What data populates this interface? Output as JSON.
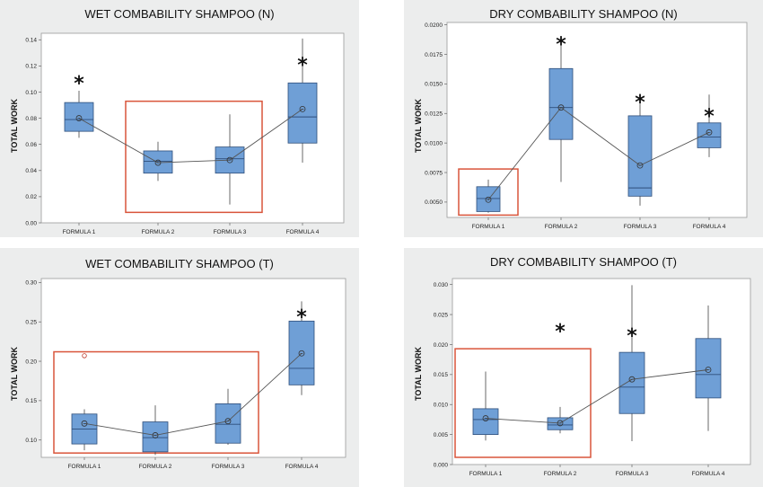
{
  "chart_data": [
    {
      "type": "box",
      "title": "WET COMBABILITY SHAMPOO (N)",
      "ylabel": "TOTAL WORK",
      "categories": [
        "FORMULA 1",
        "FORMULA 2",
        "FORMULA 3",
        "FORMULA 4"
      ],
      "yticks": [
        "0.00",
        "0.02",
        "0.04",
        "0.06",
        "0.08",
        "0.10",
        "0.12",
        "0.14"
      ],
      "ylim": [
        0,
        0.145
      ],
      "boxes": [
        {
          "min": 0.065,
          "q1": 0.07,
          "median": 0.079,
          "q3": 0.092,
          "max": 0.101,
          "mean": 0.08
        },
        {
          "min": 0.032,
          "q1": 0.038,
          "median": 0.047,
          "q3": 0.055,
          "max": 0.062,
          "mean": 0.046
        },
        {
          "min": 0.014,
          "q1": 0.038,
          "median": 0.049,
          "q3": 0.058,
          "max": 0.083,
          "mean": 0.048
        },
        {
          "min": 0.046,
          "q1": 0.061,
          "median": 0.081,
          "q3": 0.107,
          "max": 0.141,
          "mean": 0.087
        }
      ],
      "outliers": [],
      "stars": [
        {
          "category": "FORMULA 1",
          "y": 0.108,
          "label": "*"
        },
        {
          "category": "FORMULA 4",
          "y": 0.122,
          "label": "*"
        }
      ],
      "highlight": {
        "from": "FORMULA 2",
        "to": "FORMULA 3",
        "ymin": 0.008,
        "ymax": 0.093,
        "color": "#d9553b"
      }
    },
    {
      "type": "box",
      "title": "DRY COMBABILITY SHAMPOO (N)",
      "ylabel": "TOTAL WORK",
      "categories": [
        "FORMULA 1",
        "FORMULA 2",
        "FORMULA 3",
        "FORMULA 4"
      ],
      "yticks": [
        "0.0050",
        "0.0075",
        "0.0100",
        "0.0125",
        "0.0150",
        "0.0175",
        "0.0200"
      ],
      "ylim": [
        0.0037,
        0.0202
      ],
      "boxes": [
        {
          "min": 0.0041,
          "q1": 0.0042,
          "median": 0.0053,
          "q3": 0.0063,
          "max": 0.0069,
          "mean": 0.0052
        },
        {
          "min": 0.0067,
          "q1": 0.0103,
          "median": 0.013,
          "q3": 0.0163,
          "max": 0.0185,
          "mean": 0.013
        },
        {
          "min": 0.0047,
          "q1": 0.0055,
          "median": 0.0062,
          "q3": 0.0123,
          "max": 0.0137,
          "mean": 0.0081
        },
        {
          "min": 0.0088,
          "q1": 0.0096,
          "median": 0.0105,
          "q3": 0.0117,
          "max": 0.0141,
          "mean": 0.0109
        }
      ],
      "outliers": [],
      "stars": [
        {
          "category": "FORMULA 2",
          "y": 0.0185,
          "label": "*"
        },
        {
          "category": "FORMULA 3",
          "y": 0.0136,
          "label": "*"
        },
        {
          "category": "FORMULA 4",
          "y": 0.0124,
          "label": "*"
        }
      ],
      "highlight": {
        "from": "FORMULA 1",
        "to": "FORMULA 1",
        "ymin": 0.0039,
        "ymax": 0.0078,
        "color": "#d9553b"
      }
    },
    {
      "type": "box",
      "title": "WET COMBABILITY SHAMPOO (T)",
      "ylabel": "TOTAL WORK",
      "categories": [
        "FORMULA 1",
        "FORMULA 2",
        "FORMULA 3",
        "FORMULA 4"
      ],
      "yticks": [
        "0.10",
        "0.15",
        "0.20",
        "0.25",
        "0.30"
      ],
      "ylim": [
        0.078,
        0.305
      ],
      "boxes": [
        {
          "min": 0.087,
          "q1": 0.095,
          "median": 0.114,
          "q3": 0.133,
          "max": 0.139,
          "mean": 0.121
        },
        {
          "min": 0.081,
          "q1": 0.085,
          "median": 0.103,
          "q3": 0.123,
          "max": 0.144,
          "mean": 0.106
        },
        {
          "min": 0.094,
          "q1": 0.096,
          "median": 0.12,
          "q3": 0.146,
          "max": 0.165,
          "mean": 0.124
        },
        {
          "min": 0.157,
          "q1": 0.17,
          "median": 0.191,
          "q3": 0.251,
          "max": 0.276,
          "mean": 0.21
        }
      ],
      "outliers": [
        {
          "category": "FORMULA 1",
          "y": 0.207
        }
      ],
      "stars": [
        {
          "category": "FORMULA 4",
          "y": 0.258,
          "label": "*"
        }
      ],
      "highlight": {
        "from": "FORMULA 1",
        "to": "FORMULA 3",
        "ymin": 0.0835,
        "ymax": 0.212,
        "color": "#d9553b"
      }
    },
    {
      "type": "box",
      "title": "DRY COMBABILITY SHAMPOO (T)",
      "ylabel": "TOTAL WORK",
      "categories": [
        "FORMULA 1",
        "FORMULA 2",
        "FORMULA 3",
        "FORMULA 4"
      ],
      "yticks": [
        "0.000",
        "0.005",
        "0.010",
        "0.015",
        "0.020",
        "0.025",
        "0.030"
      ],
      "ylim": [
        0,
        0.031
      ],
      "boxes": [
        {
          "min": 0.004,
          "q1": 0.005,
          "median": 0.0075,
          "q3": 0.0093,
          "max": 0.0155,
          "mean": 0.0077
        },
        {
          "min": 0.0052,
          "q1": 0.0058,
          "median": 0.0066,
          "q3": 0.0078,
          "max": 0.0096,
          "mean": 0.0069
        },
        {
          "min": 0.0039,
          "q1": 0.0085,
          "median": 0.0129,
          "q3": 0.0187,
          "max": 0.0299,
          "mean": 0.0142
        },
        {
          "min": 0.0056,
          "q1": 0.0111,
          "median": 0.015,
          "q3": 0.021,
          "max": 0.0265,
          "mean": 0.0158
        }
      ],
      "outliers": [],
      "stars": [
        {
          "category": "FORMULA 2",
          "y": 0.0225,
          "label": "*"
        },
        {
          "category": "FORMULA 3",
          "y": 0.0217,
          "label": "*"
        }
      ],
      "highlight": {
        "from": "FORMULA 1",
        "to": "FORMULA 2",
        "ymin": 0.0012,
        "ymax": 0.0193,
        "color": "#d9553b"
      }
    }
  ]
}
